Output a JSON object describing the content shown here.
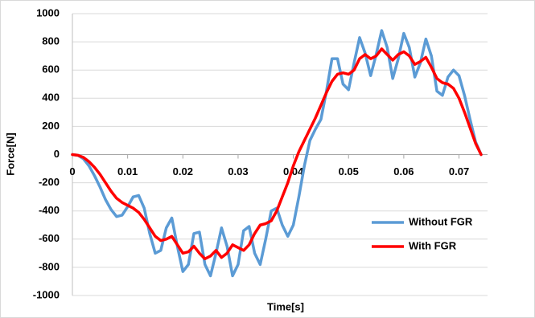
{
  "chart_data": {
    "type": "line",
    "xlabel": "Time[s]",
    "ylabel": "Force[N]",
    "x": [
      0,
      0.001,
      0.002,
      0.003,
      0.004,
      0.005,
      0.006,
      0.007,
      0.008,
      0.009,
      0.01,
      0.011,
      0.012,
      0.013,
      0.014,
      0.015,
      0.016,
      0.017,
      0.018,
      0.019,
      0.02,
      0.021,
      0.022,
      0.023,
      0.024,
      0.025,
      0.026,
      0.027,
      0.028,
      0.029,
      0.03,
      0.031,
      0.032,
      0.033,
      0.034,
      0.035,
      0.036,
      0.037,
      0.038,
      0.039,
      0.04,
      0.041,
      0.042,
      0.043,
      0.044,
      0.045,
      0.046,
      0.047,
      0.048,
      0.049,
      0.05,
      0.051,
      0.052,
      0.053,
      0.054,
      0.055,
      0.056,
      0.057,
      0.058,
      0.059,
      0.06,
      0.061,
      0.062,
      0.063,
      0.064,
      0.065,
      0.066,
      0.067,
      0.068,
      0.069,
      0.07,
      0.071,
      0.072,
      0.073,
      0.074
    ],
    "series": [
      {
        "name": "Without FGR",
        "color": "#5b9bd5",
        "values": [
          0,
          -5,
          -30,
          -80,
          -150,
          -230,
          -320,
          -390,
          -440,
          -430,
          -370,
          -300,
          -290,
          -380,
          -560,
          -700,
          -680,
          -520,
          -450,
          -650,
          -830,
          -780,
          -560,
          -550,
          -780,
          -860,
          -700,
          -520,
          -650,
          -860,
          -780,
          -540,
          -510,
          -700,
          -780,
          -600,
          -400,
          -380,
          -500,
          -580,
          -500,
          -300,
          -80,
          100,
          180,
          250,
          450,
          680,
          680,
          500,
          460,
          650,
          830,
          720,
          560,
          710,
          880,
          760,
          540,
          680,
          860,
          760,
          550,
          650,
          820,
          700,
          450,
          420,
          550,
          600,
          560,
          420,
          250,
          90,
          0
        ]
      },
      {
        "name": "With FGR",
        "color": "#ff0000",
        "values": [
          0,
          -5,
          -20,
          -50,
          -90,
          -140,
          -200,
          -260,
          -310,
          -340,
          -360,
          -380,
          -410,
          -460,
          -520,
          -580,
          -610,
          -600,
          -580,
          -640,
          -700,
          -690,
          -650,
          -700,
          -740,
          -720,
          -680,
          -730,
          -700,
          -640,
          -660,
          -680,
          -640,
          -560,
          -500,
          -490,
          -470,
          -400,
          -300,
          -200,
          -80,
          20,
          100,
          180,
          260,
          350,
          440,
          520,
          570,
          580,
          570,
          600,
          680,
          710,
          680,
          700,
          750,
          710,
          670,
          710,
          730,
          700,
          640,
          660,
          690,
          620,
          540,
          510,
          500,
          470,
          400,
          300,
          190,
          80,
          0
        ]
      }
    ],
    "xlim": [
      0,
      0.074
    ],
    "xticks": [
      0,
      0.01,
      0.02,
      0.03,
      0.04,
      0.05,
      0.06,
      0.07
    ],
    "ylim": [
      -1000,
      1000
    ],
    "yticks": [
      -1000,
      -800,
      -600,
      -400,
      -200,
      0,
      200,
      400,
      600,
      800,
      1000
    ],
    "grid": true,
    "legend": "lower right"
  }
}
